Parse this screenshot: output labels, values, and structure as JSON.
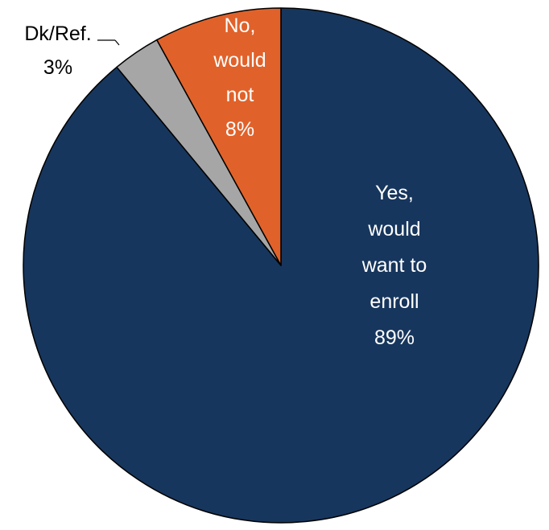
{
  "chart_data": {
    "type": "pie",
    "title": "",
    "start_angle_deg": 0,
    "direction": "clockwise",
    "slices": [
      {
        "label_lines": [
          "Yes,",
          "would",
          "want to",
          "enroll"
        ],
        "value_label": "89%",
        "value": 89,
        "color": "#17365d",
        "text_color": "#ffffff"
      },
      {
        "label_lines": [
          "Dk/Ref."
        ],
        "value_label": "3%",
        "value": 3,
        "color": "#a6a6a6",
        "text_color": "#000000"
      },
      {
        "label_lines": [
          "No,",
          "would",
          "not"
        ],
        "value_label": "8%",
        "value": 8,
        "color": "#e0622a",
        "text_color": "#ffffff"
      }
    ]
  }
}
